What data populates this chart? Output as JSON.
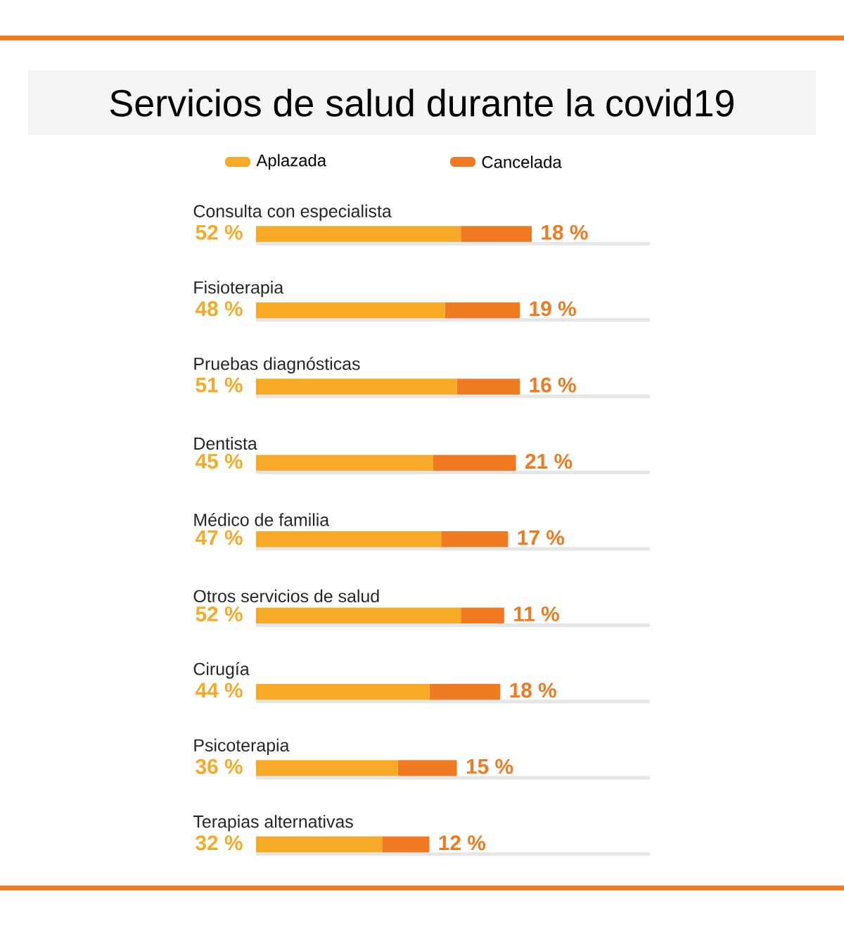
{
  "chart_data": {
    "type": "bar",
    "orientation": "horizontal",
    "stacked": true,
    "title": "Servicios de salud durante la covid19",
    "categories": [
      "Consulta con especialista",
      "Fisioterapia",
      "Pruebas diagnósticas",
      "Dentista",
      "Médico de familia",
      "Otros servicios de salud",
      "Cirugía",
      "Psicoterapia",
      "Terapias alternativas"
    ],
    "series": [
      {
        "name": "Aplazada",
        "color": "#f7a928",
        "values": [
          52,
          48,
          51,
          45,
          47,
          52,
          44,
          36,
          32
        ],
        "value_labels": [
          "52 %",
          "48 %",
          "51 %",
          "45 %",
          "47 %",
          "52 %",
          "44 %",
          "36 %",
          "32 %"
        ]
      },
      {
        "name": "Cancelada",
        "color": "#f07a22",
        "values": [
          18,
          19,
          16,
          21,
          17,
          11,
          18,
          15,
          12
        ],
        "value_labels": [
          "18 %",
          "19 %",
          "16 %",
          "21 %",
          "17 %",
          "11 %",
          "18 %",
          "15 %",
          "12 %"
        ]
      }
    ],
    "xlim": [
      0,
      100
    ],
    "tick_labels": false,
    "legend": "top"
  }
}
